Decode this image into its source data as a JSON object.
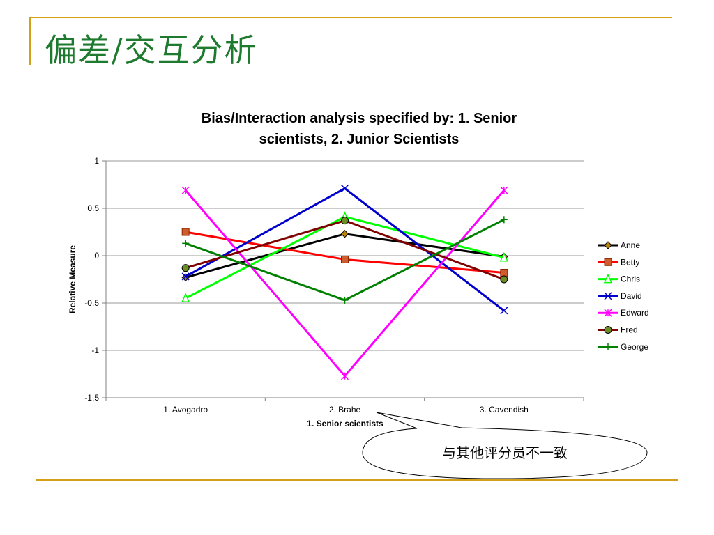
{
  "slide": {
    "title": "偏差/交互分析"
  },
  "callout": {
    "text": "与其他评分员不一致"
  },
  "chart_data": {
    "type": "line",
    "title_lines": [
      "Bias/Interaction analysis specified by: 1. Senior",
      "scientists, 2. Junior Scientists"
    ],
    "xlabel": "1. Senior scientists",
    "ylabel": "Relative Measure",
    "categories": [
      "1. Avogadro",
      "2. Brahe",
      "3. Cavendish"
    ],
    "ylim": [
      -1.5,
      1
    ],
    "yticks": [
      1,
      0.5,
      0,
      -0.5,
      -1,
      -1.5
    ],
    "ytick_labels": [
      "1",
      "0.5",
      "0",
      "-0.5",
      "-1",
      "-1.5"
    ],
    "grid": true,
    "legend_position": "right",
    "series": [
      {
        "name": "Anne",
        "color": "#000000",
        "marker": "diamond",
        "values": [
          -0.23,
          0.23,
          -0.01
        ]
      },
      {
        "name": "Betty",
        "color": "#ff0000",
        "marker": "square",
        "values": [
          0.25,
          -0.04,
          -0.18
        ]
      },
      {
        "name": "Chris",
        "color": "#00ff00",
        "marker": "triangle",
        "values": [
          -0.45,
          0.41,
          -0.02
        ]
      },
      {
        "name": "David",
        "color": "#0000cc",
        "marker": "x",
        "values": [
          -0.22,
          0.71,
          -0.58
        ]
      },
      {
        "name": "Edward",
        "color": "#ff00ff",
        "marker": "star",
        "values": [
          0.69,
          -1.27,
          0.69
        ]
      },
      {
        "name": "Fred",
        "color": "#800000",
        "marker": "circle",
        "values": [
          -0.13,
          0.37,
          -0.25
        ]
      },
      {
        "name": "George",
        "color": "#008000",
        "marker": "plus",
        "values": [
          0.13,
          -0.47,
          0.38
        ]
      }
    ]
  }
}
